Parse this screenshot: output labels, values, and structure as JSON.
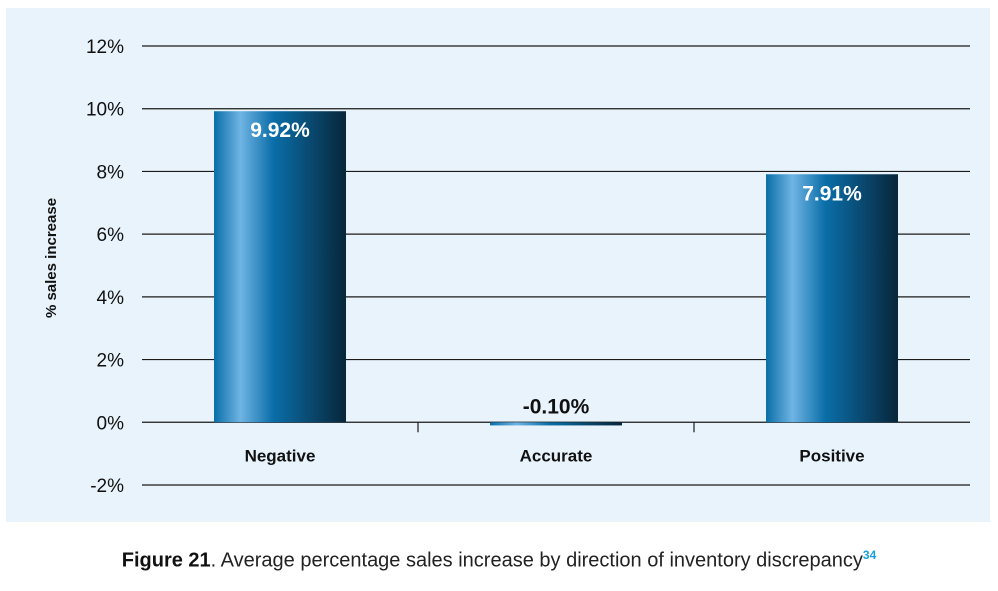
{
  "chart_data": {
    "type": "bar",
    "categories": [
      "Negative",
      "Accurate",
      "Positive"
    ],
    "values": [
      9.92,
      -0.1,
      7.91
    ],
    "value_labels": [
      "9.92%",
      "-0.10%",
      "7.91%"
    ],
    "ylabel": "% sales increase",
    "xlabel": "",
    "ylim": [
      -2,
      12
    ],
    "yticks": [
      -2,
      0,
      2,
      4,
      6,
      8,
      10,
      12
    ],
    "ytick_labels": [
      "-2%",
      "0%",
      "2%",
      "4%",
      "6%",
      "8%",
      "10%",
      "12%"
    ],
    "grid": true,
    "colors": {
      "bar_light": "#6fb4e4",
      "bar_mid": "#0a6ea8",
      "bar_dark": "#08263a",
      "panel_bg": "#e8f3fb"
    }
  },
  "caption": {
    "label": "Figure 21",
    "text": ". Average percentage sales increase by direction of inventory discrepancy",
    "footnote": "34"
  }
}
